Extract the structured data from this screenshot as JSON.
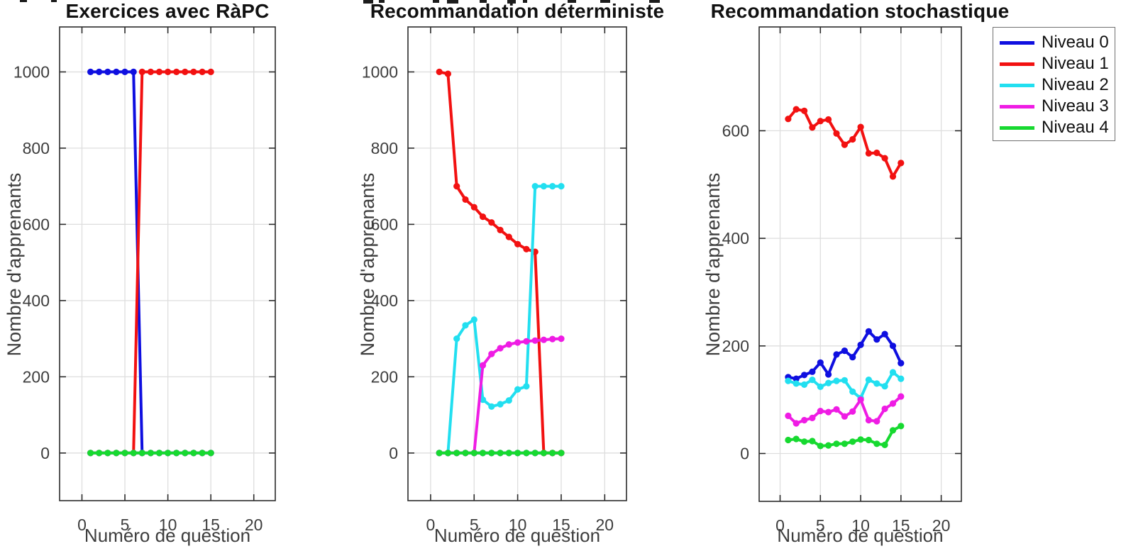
{
  "legend": {
    "entries": [
      {
        "label": "Niveau 0",
        "color": "#0f0fe0"
      },
      {
        "label": "Niveau 1",
        "color": "#f21111"
      },
      {
        "label": "Niveau 2",
        "color": "#22dff0"
      },
      {
        "label": "Niveau 3",
        "color": "#ef1ce4"
      },
      {
        "label": "Niveau 4",
        "color": "#17d930"
      }
    ],
    "position": "outside-top-right"
  },
  "chart_data": [
    {
      "type": "line",
      "title": "Exercices avec RàPC",
      "xlabel": "Numéro de question",
      "ylabel": "Nombre d'apprenants",
      "x": [
        1,
        2,
        3,
        4,
        5,
        6,
        7,
        8,
        9,
        10,
        11,
        12,
        13,
        14,
        15
      ],
      "series": [
        {
          "name": "Niveau 0",
          "color": "#0f0fe0",
          "values": [
            1000,
            1000,
            1000,
            1000,
            1000,
            1000,
            0,
            0,
            0,
            0,
            0,
            0,
            0,
            0,
            0
          ]
        },
        {
          "name": "Niveau 1",
          "color": "#f21111",
          "values": [
            0,
            0,
            0,
            0,
            0,
            0,
            1000,
            1000,
            1000,
            1000,
            1000,
            1000,
            1000,
            1000,
            1000
          ]
        },
        {
          "name": "Niveau 2",
          "color": "#22dff0",
          "values": [
            0,
            0,
            0,
            0,
            0,
            0,
            0,
            0,
            0,
            0,
            0,
            0,
            0,
            0,
            0
          ]
        },
        {
          "name": "Niveau 3",
          "color": "#ef1ce4",
          "values": [
            0,
            0,
            0,
            0,
            0,
            0,
            0,
            0,
            0,
            0,
            0,
            0,
            0,
            0,
            0
          ]
        },
        {
          "name": "Niveau 4",
          "color": "#17d930",
          "values": [
            0,
            0,
            0,
            0,
            0,
            0,
            0,
            0,
            0,
            0,
            0,
            0,
            0,
            0,
            0
          ]
        }
      ],
      "xticks": [
        0,
        5,
        10,
        15,
        20
      ],
      "yticks": [
        0,
        200,
        400,
        600,
        800,
        1000
      ],
      "xlim": [
        -2.6,
        22.5
      ],
      "ylim": [
        -125,
        1118
      ],
      "grid": true,
      "marker": "circle"
    },
    {
      "type": "line",
      "title": "Recommandation déterministe",
      "xlabel": "Numéro de question",
      "ylabel": "Nombre d'apprenants",
      "x": [
        1,
        2,
        3,
        4,
        5,
        6,
        7,
        8,
        9,
        10,
        11,
        12,
        13,
        14,
        15
      ],
      "series": [
        {
          "name": "Niveau 0",
          "color": "#0f0fe0",
          "values": [
            0,
            0,
            0,
            0,
            0,
            0,
            0,
            0,
            0,
            0,
            0,
            0,
            0,
            0,
            0
          ]
        },
        {
          "name": "Niveau 1",
          "color": "#f21111",
          "values": [
            1000,
            995,
            700,
            665,
            645,
            620,
            605,
            585,
            567,
            548,
            535,
            528,
            0,
            0,
            0
          ]
        },
        {
          "name": "Niveau 2",
          "color": "#22dff0",
          "values": [
            0,
            0,
            300,
            335,
            350,
            140,
            122,
            128,
            138,
            167,
            175,
            700,
            700,
            700,
            700
          ]
        },
        {
          "name": "Niveau 3",
          "color": "#ef1ce4",
          "values": [
            0,
            0,
            0,
            0,
            0,
            230,
            260,
            275,
            285,
            290,
            293,
            295,
            297,
            299,
            300
          ]
        },
        {
          "name": "Niveau 4",
          "color": "#17d930",
          "values": [
            0,
            0,
            0,
            0,
            0,
            0,
            0,
            0,
            0,
            0,
            0,
            0,
            0,
            0,
            0
          ]
        }
      ],
      "xticks": [
        0,
        5,
        10,
        15,
        20
      ],
      "yticks": [
        0,
        200,
        400,
        600,
        800,
        1000
      ],
      "xlim": [
        -2.6,
        22.5
      ],
      "ylim": [
        -125,
        1118
      ],
      "grid": true,
      "marker": "circle"
    },
    {
      "type": "line",
      "title": "Recommandation stochastique",
      "xlabel": "Numéro de question",
      "ylabel": "Nombre d'apprenants",
      "x": [
        1,
        2,
        3,
        4,
        5,
        6,
        7,
        8,
        9,
        10,
        11,
        12,
        13,
        14,
        15
      ],
      "series": [
        {
          "name": "Niveau 0",
          "color": "#0f0fe0",
          "values": [
            142,
            139,
            146,
            152,
            169,
            147,
            184,
            191,
            179,
            202,
            227,
            212,
            222,
            200,
            168
          ]
        },
        {
          "name": "Niveau 1",
          "color": "#f21111",
          "values": [
            622,
            640,
            637,
            606,
            618,
            621,
            595,
            574,
            584,
            607,
            558,
            559,
            549,
            515,
            540
          ]
        },
        {
          "name": "Niveau 2",
          "color": "#22dff0",
          "values": [
            135,
            130,
            128,
            137,
            124,
            131,
            135,
            136,
            115,
            103,
            137,
            130,
            125,
            151,
            139
          ]
        },
        {
          "name": "Niveau 3",
          "color": "#ef1ce4",
          "values": [
            70,
            56,
            62,
            66,
            79,
            77,
            82,
            69,
            78,
            100,
            62,
            60,
            83,
            93,
            106
          ]
        },
        {
          "name": "Niveau 4",
          "color": "#17d930",
          "values": [
            25,
            27,
            22,
            23,
            14,
            15,
            18,
            18,
            22,
            26,
            25,
            18,
            16,
            43,
            51
          ]
        }
      ],
      "xticks": [
        0,
        5,
        10,
        15,
        20
      ],
      "yticks": [
        0,
        200,
        400,
        600
      ],
      "xlim": [
        -2.6,
        22.5
      ],
      "ylim": [
        -89,
        793
      ],
      "grid": true,
      "marker": "circle"
    }
  ]
}
